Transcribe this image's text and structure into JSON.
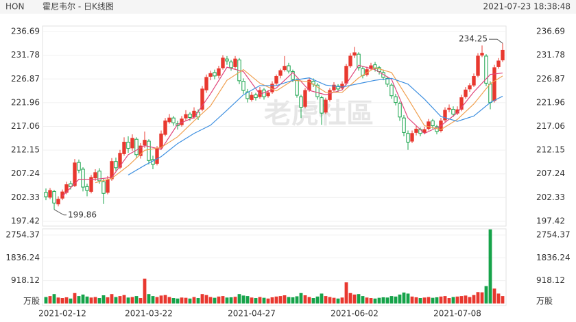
{
  "header": {
    "symbol": "HON",
    "name": "霍尼韦尔 - 日K线图",
    "timestamp": "2021-07-23 18:38:48"
  },
  "watermark": "老虎社區",
  "chart_data": {
    "type": "candlestick",
    "categories": [
      null,
      null,
      null,
      null,
      "2021-02-12",
      null,
      null,
      null,
      null,
      null,
      null,
      null,
      null,
      null,
      null,
      null,
      null,
      null,
      null,
      null,
      null,
      null,
      null,
      null,
      null,
      "2021-03-22",
      null,
      null,
      null,
      null,
      null,
      null,
      null,
      null,
      null,
      null,
      null,
      null,
      null,
      null,
      null,
      null,
      null,
      null,
      null,
      null,
      null,
      null,
      null,
      null,
      "2021-04-27",
      null,
      null,
      null,
      null,
      null,
      null,
      null,
      null,
      null,
      null,
      null,
      null,
      null,
      null,
      null,
      null,
      null,
      null,
      null,
      null,
      null,
      null,
      null,
      null,
      "2021-06-02",
      null,
      null,
      null,
      null,
      null,
      null,
      null,
      null,
      null,
      null,
      null,
      null,
      null,
      null,
      null,
      null,
      null,
      null,
      null,
      null,
      null,
      null,
      null,
      null,
      "2021-07-08",
      null,
      null,
      null,
      null,
      null,
      null,
      null,
      null,
      null,
      null,
      null
    ],
    "open": [
      203.4,
      202.4,
      203.6,
      201.0,
      202.2,
      203.4,
      205.2,
      204.8,
      209.6,
      208.2,
      204.6,
      203.6,
      206.4,
      207.8,
      205.6,
      203.4,
      206.2,
      209.8,
      208.6,
      211.4,
      213.8,
      212.6,
      214.4,
      211.0,
      213.2,
      214.0,
      210.2,
      209.4,
      212.6,
      215.4,
      218.0,
      218.8,
      217.6,
      217.4,
      218.8,
      219.6,
      219.0,
      220.0,
      220.6,
      224.6,
      227.4,
      228.2,
      227.6,
      229.2,
      231.0,
      230.4,
      229.4,
      230.8,
      226.4,
      224.2,
      222.6,
      223.6,
      223.2,
      224.6,
      223.4,
      224.2,
      226.0,
      227.6,
      228.8,
      229.6,
      228.4,
      226.6,
      223.2,
      221.2,
      224.6,
      226.4,
      225.6,
      223.0,
      220.0,
      222.6,
      224.6,
      225.4,
      225.0,
      226.0,
      229.6,
      231.8,
      232.0,
      229.0,
      227.8,
      229.0,
      229.8,
      229.2,
      228.2,
      227.0,
      225.6,
      223.2,
      221.8,
      218.8,
      215.6,
      214.0,
      215.8,
      216.4,
      215.8,
      216.6,
      218.2,
      217.0,
      216.2,
      218.4,
      220.6,
      220.6,
      219.8,
      220.6,
      223.2,
      224.8,
      225.6,
      227.6,
      231.8,
      231.6,
      225.8,
      222.4,
      229.4,
      230.8
    ],
    "high": [
      204.2,
      204.3,
      203.9,
      202.6,
      204.0,
      205.6,
      205.8,
      210.3,
      210.2,
      208.6,
      205.2,
      207.0,
      208.2,
      208.4,
      206.2,
      206.8,
      210.5,
      210.6,
      212.2,
      214.8,
      215.0,
      215.4,
      214.8,
      213.6,
      216.0,
      214.4,
      211.0,
      213.0,
      216.2,
      218.8,
      219.6,
      219.2,
      218.2,
      219.2,
      220.4,
      220.0,
      221.0,
      220.6,
      225.4,
      227.8,
      228.6,
      228.8,
      229.6,
      231.8,
      231.6,
      230.8,
      231.6,
      231.2,
      227.0,
      224.8,
      224.2,
      224.0,
      225.2,
      225.0,
      224.6,
      226.4,
      227.8,
      229.0,
      231.6,
      230.2,
      228.8,
      227.0,
      223.6,
      225.0,
      227.2,
      227.0,
      226.0,
      223.4,
      223.0,
      225.0,
      226.2,
      225.8,
      226.4,
      230.0,
      232.2,
      233.5,
      232.4,
      229.6,
      229.4,
      230.2,
      230.4,
      229.6,
      228.8,
      227.4,
      226.0,
      223.8,
      222.2,
      219.4,
      216.2,
      216.2,
      217.2,
      216.8,
      217.0,
      218.6,
      218.6,
      217.4,
      218.8,
      221.0,
      221.6,
      221.2,
      221.2,
      223.6,
      225.2,
      226.0,
      228.0,
      232.2,
      233.8,
      232.0,
      226.4,
      229.8,
      231.2,
      234.25
    ],
    "low": [
      201.8,
      202.0,
      199.86,
      200.5,
      201.8,
      203.0,
      204.0,
      204.5,
      207.4,
      203.6,
      202.6,
      203.2,
      205.8,
      205.2,
      201.0,
      203.0,
      205.8,
      207.8,
      208.2,
      211.0,
      211.6,
      212.0,
      210.6,
      210.4,
      212.6,
      209.2,
      208.2,
      209.0,
      212.2,
      215.0,
      217.6,
      217.2,
      216.4,
      217.0,
      218.2,
      218.2,
      218.6,
      218.4,
      220.2,
      224.0,
      226.6,
      226.8,
      227.0,
      228.8,
      229.8,
      228.6,
      229.0,
      225.8,
      223.8,
      222.0,
      222.2,
      222.4,
      222.8,
      222.6,
      223.0,
      223.8,
      225.6,
      227.0,
      228.4,
      228.0,
      226.2,
      223.0,
      218.8,
      220.8,
      224.2,
      225.2,
      222.6,
      217.4,
      219.6,
      222.2,
      224.2,
      224.2,
      224.6,
      225.6,
      229.2,
      231.2,
      228.6,
      227.0,
      227.4,
      228.6,
      228.4,
      227.8,
      226.6,
      225.2,
      222.8,
      221.4,
      218.2,
      215.0,
      212.2,
      213.6,
      215.2,
      215.0,
      215.4,
      216.2,
      216.6,
      215.4,
      215.8,
      218.0,
      220.0,
      219.0,
      219.4,
      220.2,
      222.8,
      224.2,
      225.2,
      227.2,
      231.4,
      225.4,
      220.6,
      222.0,
      229.0,
      230.4
    ],
    "close": [
      202.5,
      203.8,
      201.2,
      202.0,
      203.5,
      205.0,
      204.6,
      209.5,
      208.0,
      204.5,
      203.8,
      206.5,
      207.5,
      205.8,
      203.2,
      206.0,
      209.8,
      208.5,
      211.5,
      213.8,
      212.5,
      214.6,
      211.2,
      213.0,
      214.2,
      210.0,
      209.2,
      212.5,
      215.5,
      218.2,
      218.8,
      217.8,
      217.2,
      218.6,
      219.5,
      218.9,
      220.2,
      219.0,
      224.8,
      227.2,
      228.0,
      227.5,
      229.0,
      231.2,
      230.6,
      229.2,
      231.0,
      226.5,
      224.5,
      222.8,
      223.5,
      223.0,
      224.5,
      223.2,
      224.0,
      225.8,
      227.4,
      228.6,
      229.5,
      228.5,
      226.8,
      223.5,
      221.0,
      224.5,
      226.6,
      225.8,
      223.2,
      219.8,
      222.5,
      224.5,
      225.6,
      224.8,
      225.8,
      229.5,
      231.6,
      232.3,
      229.2,
      227.6,
      228.8,
      229.6,
      229.0,
      228.4,
      227.2,
      225.8,
      223.4,
      222.0,
      219.0,
      215.8,
      213.8,
      215.6,
      216.5,
      215.6,
      216.4,
      218.0,
      217.2,
      216.0,
      218.2,
      220.4,
      220.8,
      219.6,
      220.5,
      223.0,
      224.6,
      225.5,
      227.4,
      231.6,
      232.2,
      226.0,
      222.0,
      229.2,
      230.6,
      232.8
    ],
    "volume": [
      260,
      300,
      380,
      240,
      220,
      250,
      200,
      420,
      300,
      360,
      280,
      240,
      260,
      220,
      330,
      250,
      380,
      260,
      300,
      340,
      240,
      260,
      300,
      220,
      1000,
      380,
      300,
      260,
      320,
      340,
      260,
      220,
      200,
      240,
      230,
      200,
      260,
      220,
      380,
      340,
      260,
      230,
      280,
      300,
      240,
      250,
      270,
      380,
      320,
      300,
      240,
      220,
      260,
      230,
      200,
      250,
      280,
      300,
      330,
      260,
      250,
      290,
      420,
      330,
      260,
      220,
      280,
      400,
      300,
      260,
      230,
      200,
      240,
      850,
      420,
      360,
      380,
      300,
      240,
      220,
      200,
      230,
      250,
      240,
      300,
      280,
      360,
      440,
      400,
      280,
      250,
      220,
      240,
      260,
      230,
      250,
      280,
      300,
      220,
      260,
      280,
      300,
      320,
      260,
      340,
      460,
      450,
      700,
      2980,
      600,
      400,
      300
    ],
    "ylim": [
      197.42,
      236.69
    ],
    "yticks": [
      197.42,
      202.33,
      207.24,
      212.15,
      217.06,
      221.96,
      226.87,
      231.78,
      236.69
    ],
    "volume_ylim": [
      0,
      3030
    ],
    "volume_yticks": [
      918.12,
      1836.24,
      2754.37
    ],
    "volume_unit": "万股",
    "up_color": "#e8382f",
    "down_color": "#16a34a",
    "grid": true,
    "ma_lines": [
      {
        "color": "#e0457b",
        "x": [
          4,
          8,
          12,
          16,
          20,
          24,
          28,
          32,
          36,
          40,
          44,
          48,
          52,
          56,
          60,
          64,
          68,
          72,
          76,
          80,
          84,
          88,
          92,
          96,
          100,
          104,
          108,
          111
        ],
        "values": [
          202.6,
          206.1,
          206.1,
          206.5,
          211.2,
          213.1,
          212.3,
          217.5,
          218.9,
          223.8,
          229.3,
          228.4,
          223.7,
          225.0,
          228.2,
          224.5,
          223.6,
          224.6,
          229.7,
          228.8,
          226.8,
          218.8,
          215.6,
          217.2,
          219.9,
          224.2,
          227.8,
          228.1
        ]
      },
      {
        "color": "#f0a050",
        "x": [
          12,
          16,
          20,
          24,
          28,
          32,
          36,
          40,
          44,
          48,
          52,
          56,
          60,
          64,
          68,
          72,
          76,
          80,
          84,
          88,
          92,
          96,
          100,
          104,
          108,
          111
        ],
        "values": [
          205.4,
          206.3,
          208.9,
          212.1,
          212.7,
          214.9,
          218.2,
          221.3,
          226.6,
          228.8,
          226.0,
          224.4,
          226.6,
          226.3,
          224.1,
          224.1,
          227.1,
          229.2,
          228.2,
          222.8,
          217.2,
          216.4,
          218.5,
          221.7,
          225.9,
          227.5
        ]
      },
      {
        "color": "#3d8fe0",
        "x": [
          20,
          24,
          28,
          32,
          36,
          40,
          44,
          48,
          52,
          56,
          60,
          64,
          68,
          72,
          76,
          80,
          84,
          88,
          92,
          96,
          100,
          104,
          108,
          111
        ],
        "values": [
          207.0,
          209.0,
          210.8,
          213.5,
          215.6,
          217.3,
          220.4,
          223.6,
          225.5,
          225.5,
          226.6,
          227.1,
          225.6,
          225.2,
          225.9,
          226.6,
          227.0,
          225.8,
          222.7,
          219.1,
          218.1,
          219.2,
          222.0,
          223.3
        ]
      }
    ]
  }
}
